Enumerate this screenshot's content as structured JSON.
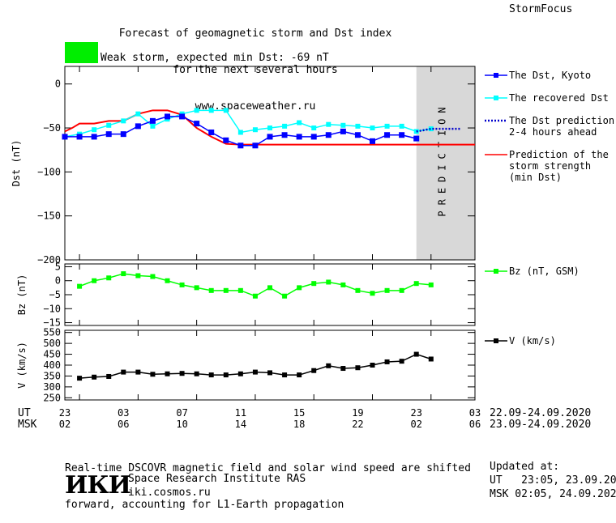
{
  "header": {
    "title_lines": [
      "Forecast of geomagnetic storm and Dst index",
      "for the next several hours",
      "www.spaceweather.ru"
    ],
    "brand": "StormFocus",
    "storm_label": "Weak storm, expected min Dst: -69 nT",
    "storm_color": "#00ee00"
  },
  "colors": {
    "dst": "#0000ff",
    "recovered": "#00ffff",
    "prediction_dots": "#0000cc",
    "storm_line": "#ff0000",
    "bz": "#00ff00",
    "v": "#000000",
    "prediction_band": "#d8d8d8"
  },
  "axes": {
    "ut_label": "UT",
    "msk_label": "MSK",
    "ut_ticks": [
      "23",
      "03",
      "07",
      "11",
      "15",
      "19",
      "23",
      "03"
    ],
    "msk_ticks": [
      "02",
      "06",
      "10",
      "14",
      "18",
      "22",
      "02",
      "06"
    ],
    "ut_range": "22.09-24.09.2020",
    "msk_range": "23.09-24.09.2020"
  },
  "prediction_text": "PREDICTION",
  "footer": {
    "note_lines": [
      "Real-time DSCOVR magnetic field and solar wind speed are shifted",
      "forward, accounting for L1-Earth propagation"
    ],
    "institute": "Space Research Institute RAS",
    "site": "iki.cosmos.ru",
    "logo": "ИКИ",
    "updated_label": "Updated at:",
    "updated_ut": "UT   23:05, 23.09.2020",
    "updated_msk": "MSK 02:05, 24.09.2020"
  },
  "chart_data": [
    {
      "type": "line",
      "ylabel": "Dst (nT)",
      "ylim": [
        -200,
        20
      ],
      "yticks": [
        0,
        -50,
        -100,
        -150,
        -200
      ],
      "x_unit": "hours since 22.09 23 UT",
      "xlim": [
        0,
        28
      ],
      "prediction_start": 24,
      "series": [
        {
          "name": "The Dst, Kyoto",
          "marker": "square",
          "x": [
            0,
            1,
            2,
            3,
            4,
            5,
            6,
            7,
            8,
            9,
            10,
            11,
            12,
            13,
            14,
            15,
            16,
            17,
            18,
            19,
            20,
            21,
            22,
            23,
            24
          ],
          "values": [
            -60,
            -60,
            -60,
            -57,
            -57,
            -48,
            -42,
            -37,
            -37,
            -45,
            -55,
            -64,
            -70,
            -70,
            -60,
            -58,
            -60,
            -60,
            -58,
            -54,
            -58,
            -65,
            -58,
            -58,
            -62
          ]
        },
        {
          "name": "The recovered Dst",
          "marker": "square",
          "x": [
            0,
            1,
            2,
            3,
            4,
            5,
            6,
            7,
            8,
            9,
            10,
            11,
            12,
            13,
            14,
            15,
            16,
            17,
            18,
            19,
            20,
            21,
            22,
            23,
            24,
            25
          ],
          "values": [
            -60,
            -57,
            -52,
            -47,
            -42,
            -34,
            -48,
            -40,
            -34,
            -30,
            -30,
            -30,
            -55,
            -52,
            -50,
            -48,
            -44,
            -50,
            -46,
            -47,
            -48,
            -50,
            -48,
            -48,
            -54,
            -51
          ]
        },
        {
          "name": "The Dst prediction",
          "label_lines": [
            "The Dst prediction",
            "2-4 hours ahead"
          ],
          "x": [
            24,
            25,
            26,
            27
          ],
          "values": [
            -54,
            -51,
            -51,
            -51
          ]
        },
        {
          "name": "Prediction of the storm strength (min Dst)",
          "label_lines": [
            "Prediction of the",
            "storm strength",
            "(min Dst)"
          ],
          "x": [
            0,
            0.5,
            1,
            2,
            3,
            4,
            5,
            6,
            7,
            8,
            9,
            10,
            11,
            12,
            24,
            28
          ],
          "values": [
            -54,
            -50,
            -45,
            -45,
            -42,
            -42,
            -34,
            -30,
            -30,
            -35,
            -50,
            -60,
            -68,
            -69,
            -69,
            -69
          ]
        }
      ]
    },
    {
      "type": "line",
      "ylabel": "Bz (nT)",
      "ylim": [
        -16,
        6
      ],
      "yticks": [
        5,
        0,
        -5,
        -10,
        -15
      ],
      "series": [
        {
          "name": "Bz (nT, GSM)",
          "marker": "square",
          "x": [
            1,
            2,
            3,
            4,
            5,
            6,
            7,
            8,
            9,
            10,
            11,
            12,
            13,
            14,
            15,
            16,
            17,
            18,
            19,
            20,
            21,
            22,
            23,
            24,
            25
          ],
          "values": [
            -2,
            0,
            1,
            2.5,
            1.8,
            1.5,
            0,
            -1.5,
            -2.5,
            -3.5,
            -3.5,
            -3.5,
            -5.5,
            -2.5,
            -5.5,
            -2.5,
            -1,
            -0.5,
            -1.5,
            -3.5,
            -4.5,
            -3.5,
            -3.5,
            -1,
            -1.5
          ]
        }
      ]
    },
    {
      "type": "line",
      "ylabel": "V (km/s)",
      "ylim": [
        240,
        560
      ],
      "yticks": [
        550,
        500,
        450,
        400,
        350,
        300,
        250
      ],
      "series": [
        {
          "name": "V (km/s)",
          "marker": "square",
          "x": [
            1,
            2,
            3,
            4,
            5,
            6,
            7,
            8,
            9,
            10,
            11,
            12,
            13,
            14,
            15,
            16,
            17,
            18,
            19,
            20,
            21,
            22,
            23,
            24,
            25
          ],
          "values": [
            340,
            345,
            348,
            368,
            368,
            358,
            360,
            362,
            360,
            355,
            355,
            360,
            368,
            365,
            355,
            355,
            375,
            397,
            385,
            388,
            400,
            415,
            418,
            450,
            428
          ]
        }
      ]
    }
  ]
}
